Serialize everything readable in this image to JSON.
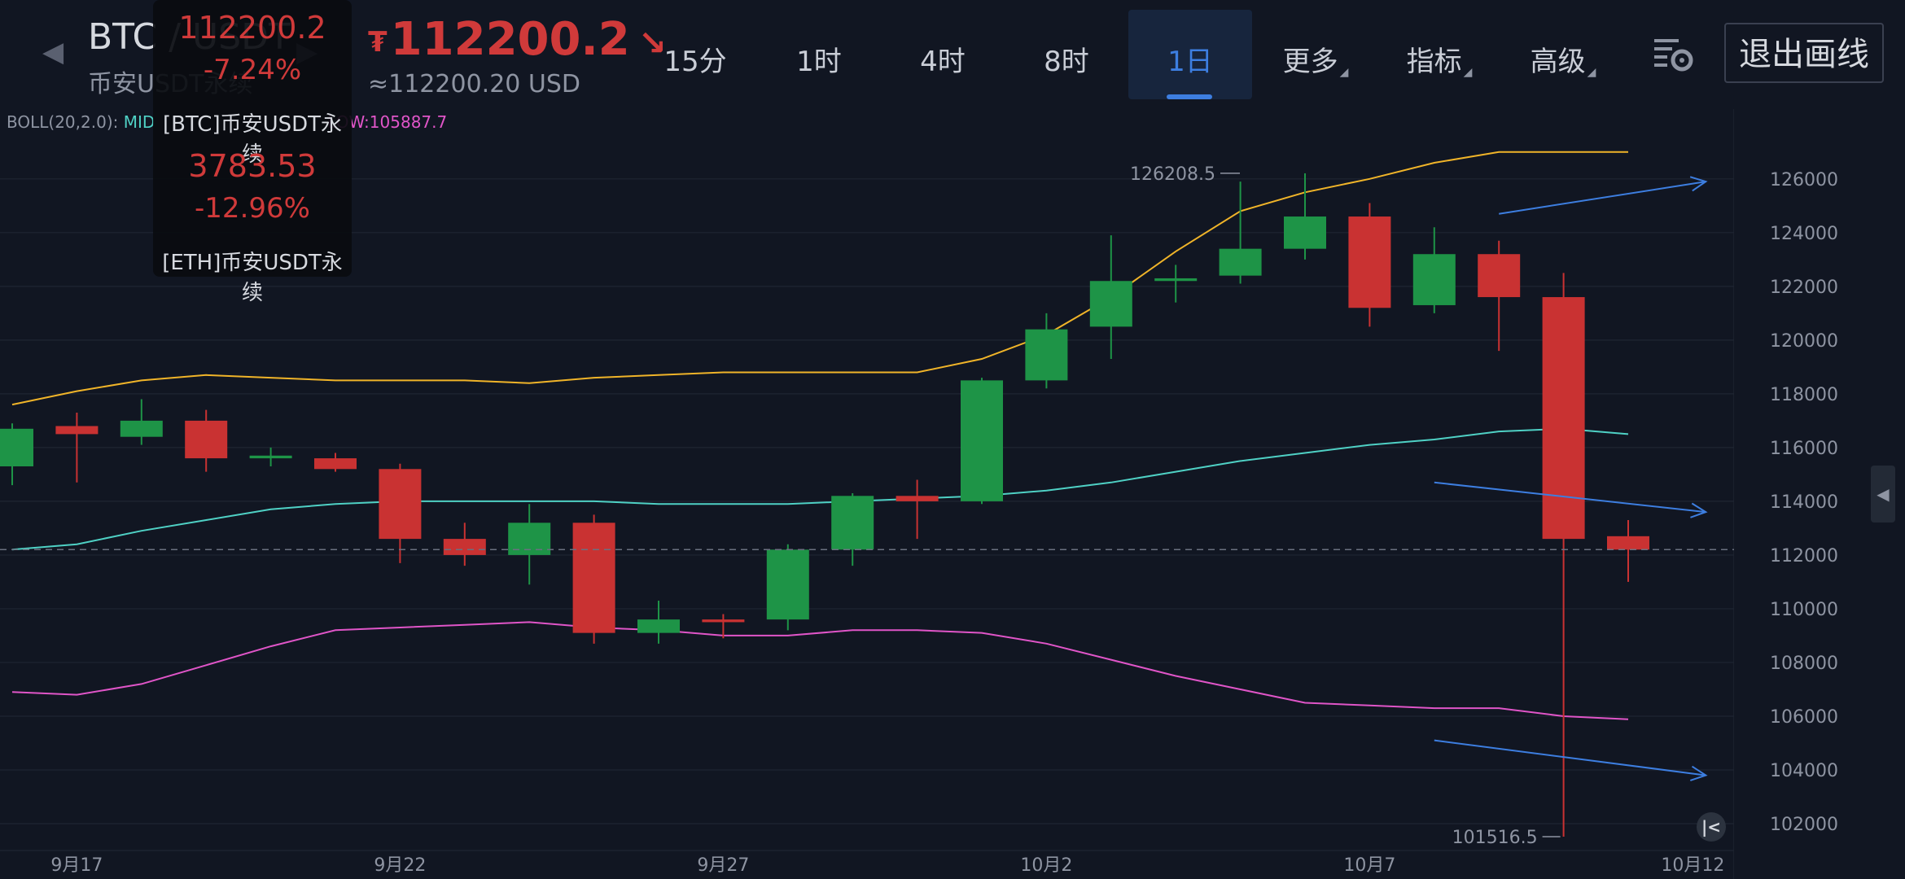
{
  "header": {
    "pair": "BTC / USDT",
    "market": "币安USDT永续",
    "currency_symbol": "₮",
    "last_price": "112200.2",
    "price_fiat": "≈112200.20 USD",
    "timeframes": [
      {
        "label": "15分",
        "active": false
      },
      {
        "label": "1时",
        "active": false
      },
      {
        "label": "4时",
        "active": false
      },
      {
        "label": "8时",
        "active": false
      },
      {
        "label": "1日",
        "active": true
      }
    ],
    "menus": [
      "更多",
      "指标",
      "高级"
    ],
    "exit_drawing": "退出画线"
  },
  "popup": {
    "btc_price": "112200.2",
    "btc_change": "-7.24%",
    "btc_name": "[BTC]币安USDT永续",
    "eth_price": "3783.53",
    "eth_change": "-12.96%",
    "eth_name": "[ETH]币安USDT永续"
  },
  "indicator": {
    "boll_prefix": "BOLL(20,2.0): ",
    "mid_label": "MID",
    "low_label": "LOW:105887.7"
  },
  "icons": {
    "settings": "chart-settings-icon",
    "prev": "chevron-left-icon",
    "next": "chevron-right-icon",
    "rewind": "rewind-to-latest-icon"
  },
  "colors": {
    "background": "#111622",
    "up": "#1e9447",
    "down": "#c93232",
    "boll_up": "#f0b429",
    "boll_mid": "#4fd1c5",
    "boll_low": "#e055c8",
    "drawing": "#3d7ee0",
    "accent": "#3d7ee0"
  },
  "chart_data": {
    "type": "candlestick",
    "ylim": [
      101000,
      128600
    ],
    "y_ticks": [
      102000,
      104000,
      106000,
      108000,
      110000,
      112000,
      114000,
      116000,
      118000,
      120000,
      122000,
      124000,
      126000
    ],
    "y_tick_labels": [
      "102000",
      "104000",
      "106000",
      "108000",
      "110000",
      "112000",
      "114000",
      "116000",
      "118000",
      "120000",
      "122000",
      "124000",
      "126000"
    ],
    "x_labels": [
      {
        "index": 1,
        "label": "9月17"
      },
      {
        "index": 6,
        "label": "9月22"
      },
      {
        "index": 11,
        "label": "9月27"
      },
      {
        "index": 16,
        "label": "10月2"
      },
      {
        "index": 21,
        "label": "10月7"
      },
      {
        "index": 26,
        "label": "10月12"
      }
    ],
    "current_price": 112200.2,
    "current_price_label": "112200.2",
    "high_marker": {
      "index": 20,
      "value": 126208.5,
      "label": "126208.5"
    },
    "low_marker": {
      "index": 24,
      "value": 101516.5,
      "label": "101516.5"
    },
    "candles": [
      {
        "o": 115300,
        "h": 116900,
        "l": 114600,
        "c": 116700
      },
      {
        "o": 116800,
        "h": 117300,
        "l": 114700,
        "c": 116500
      },
      {
        "o": 116400,
        "h": 117800,
        "l": 116100,
        "c": 117000
      },
      {
        "o": 117000,
        "h": 117400,
        "l": 115100,
        "c": 115600
      },
      {
        "o": 115600,
        "h": 116000,
        "l": 115300,
        "c": 115700
      },
      {
        "o": 115600,
        "h": 115800,
        "l": 115100,
        "c": 115200
      },
      {
        "o": 115200,
        "h": 115400,
        "l": 111700,
        "c": 112600
      },
      {
        "o": 112600,
        "h": 113200,
        "l": 111600,
        "c": 112000
      },
      {
        "o": 112000,
        "h": 113900,
        "l": 110900,
        "c": 113200
      },
      {
        "o": 113200,
        "h": 113500,
        "l": 108700,
        "c": 109100
      },
      {
        "o": 109100,
        "h": 110300,
        "l": 108700,
        "c": 109600
      },
      {
        "o": 109600,
        "h": 109800,
        "l": 108900,
        "c": 109500
      },
      {
        "o": 109600,
        "h": 112400,
        "l": 109200,
        "c": 112200
      },
      {
        "o": 112200,
        "h": 114300,
        "l": 111600,
        "c": 114200
      },
      {
        "o": 114200,
        "h": 114800,
        "l": 112600,
        "c": 114000
      },
      {
        "o": 114000,
        "h": 118600,
        "l": 113900,
        "c": 118500
      },
      {
        "o": 118500,
        "h": 121000,
        "l": 118200,
        "c": 120400
      },
      {
        "o": 120500,
        "h": 123900,
        "l": 119300,
        "c": 122200
      },
      {
        "o": 122200,
        "h": 122800,
        "l": 121400,
        "c": 122300
      },
      {
        "o": 122400,
        "h": 125900,
        "l": 122100,
        "c": 123400
      },
      {
        "o": 123400,
        "h": 126208.5,
        "l": 123000,
        "c": 124600
      },
      {
        "o": 124600,
        "h": 125100,
        "l": 120500,
        "c": 121200
      },
      {
        "o": 121300,
        "h": 124200,
        "l": 121000,
        "c": 123200
      },
      {
        "o": 123200,
        "h": 123700,
        "l": 119600,
        "c": 121600
      },
      {
        "o": 121600,
        "h": 122500,
        "l": 101516.5,
        "c": 112600
      },
      {
        "o": 112700,
        "h": 113300,
        "l": 111000,
        "c": 112200.2
      }
    ],
    "boll": {
      "upper": [
        117600,
        118100,
        118500,
        118700,
        118600,
        118500,
        118500,
        118500,
        118400,
        118600,
        118700,
        118800,
        118800,
        118800,
        118800,
        119300,
        120200,
        121600,
        123300,
        124800,
        125500,
        126000,
        126600,
        127000,
        127000,
        127000
      ],
      "mid": [
        112200,
        112400,
        112900,
        113300,
        113700,
        113900,
        114000,
        114000,
        114000,
        114000,
        113900,
        113900,
        113900,
        114000,
        114100,
        114200,
        114400,
        114700,
        115100,
        115500,
        115800,
        116100,
        116300,
        116600,
        116700,
        116500
      ],
      "lower": [
        106900,
        106800,
        107200,
        107900,
        108600,
        109200,
        109300,
        109400,
        109500,
        109300,
        109200,
        109000,
        109000,
        109200,
        109200,
        109100,
        108700,
        108100,
        107500,
        107000,
        106500,
        106400,
        106300,
        106300,
        106000,
        105887.7
      ]
    },
    "drawings": [
      {
        "type": "arrow-line",
        "from": {
          "index": 23.0,
          "value": 124700
        },
        "to": {
          "index": 26.2,
          "value": 125900
        }
      },
      {
        "type": "arrow-line",
        "from": {
          "index": 22.0,
          "value": 114700
        },
        "to": {
          "index": 26.2,
          "value": 113600
        }
      },
      {
        "type": "arrow-line",
        "from": {
          "index": 22.0,
          "value": 105100
        },
        "to": {
          "index": 26.2,
          "value": 103800
        }
      }
    ]
  }
}
